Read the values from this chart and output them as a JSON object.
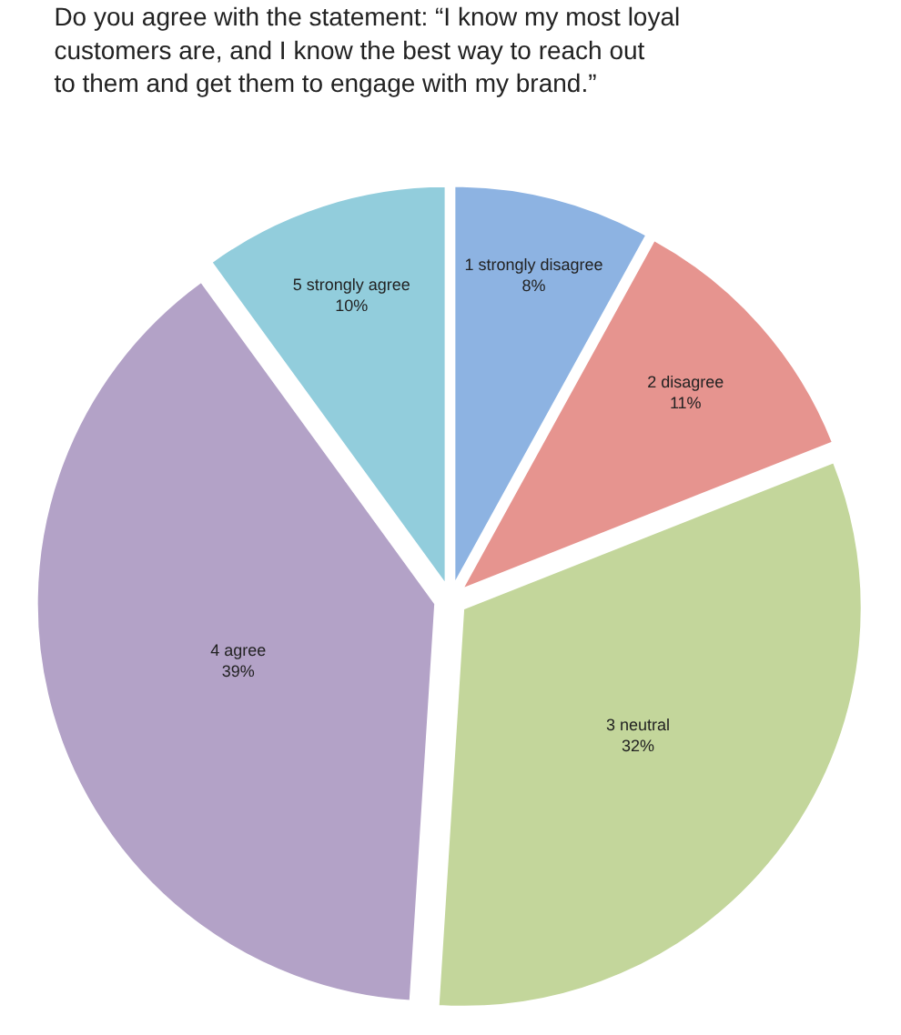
{
  "chart_data": {
    "type": "pie",
    "title": "Do you agree with the statement: “I know my most loyal\ncustomers are, and I know the best way to reach out\nto them and get them to engage with my brand.”",
    "categories": [
      "1 strongly disagree",
      "2 disagree",
      "3 neutral",
      "4 agree",
      "5 strongly agree"
    ],
    "values": [
      8,
      11,
      32,
      39,
      10
    ],
    "value_labels": [
      "8%",
      "11%",
      "32%",
      "39%",
      "10%"
    ],
    "colors": [
      "#8db3e2",
      "#e6948f",
      "#c3d69b",
      "#b3a2c7",
      "#92cddc"
    ],
    "legend": false
  }
}
